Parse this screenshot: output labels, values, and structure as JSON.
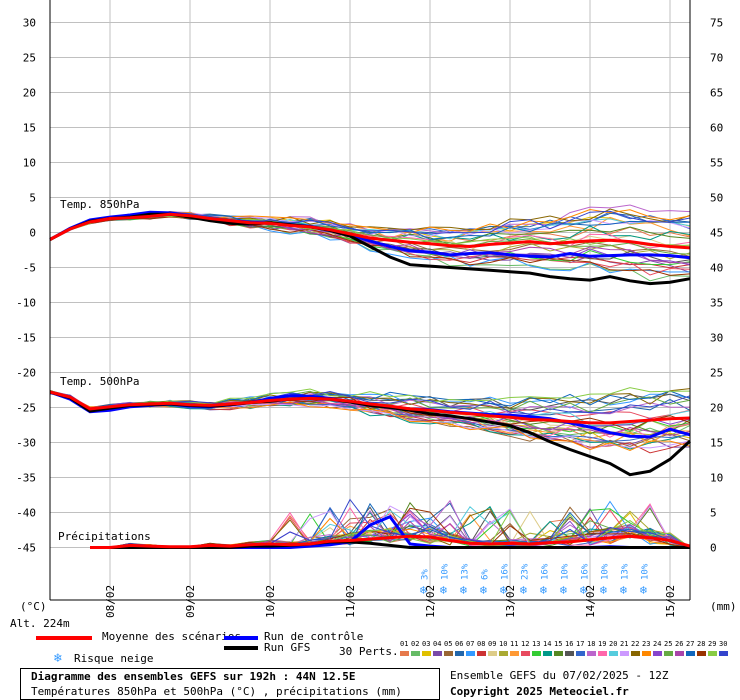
{
  "chart_data": {
    "type": "line",
    "left_axis": {
      "unit": "(°C)",
      "ticks": [
        30,
        25,
        20,
        15,
        10,
        5,
        0,
        -5,
        -10,
        -15,
        -20,
        -25,
        -30,
        -35,
        -40,
        -45
      ],
      "range": [
        -50,
        33
      ]
    },
    "right_axis": {
      "unit": "(mm)",
      "ticks": [
        75,
        70,
        65,
        60,
        55,
        50,
        45,
        40,
        35,
        30,
        25,
        20,
        15,
        10,
        5,
        0
      ],
      "range": [
        0,
        75
      ]
    },
    "altitude_label": "Alt. 224m",
    "x_labels": [
      "08/02",
      "09/02",
      "10/02",
      "11/02",
      "12/02",
      "13/02",
      "14/02",
      "15/02"
    ],
    "x_range_hours": [
      0,
      192
    ],
    "panels": {
      "t850": {
        "label": "Temp. 850hPa"
      },
      "t500": {
        "label": "Temp. 500hPa"
      },
      "precip": {
        "label": "Précipitations"
      }
    },
    "hours": [
      0,
      6,
      12,
      18,
      24,
      30,
      36,
      42,
      48,
      54,
      60,
      66,
      72,
      78,
      84,
      90,
      96,
      102,
      108,
      114,
      120,
      126,
      132,
      138,
      144,
      150,
      156,
      162,
      168,
      174,
      180,
      186,
      192
    ],
    "series": [
      {
        "name": "Moyenne des scénarios",
        "color": "#ff0000",
        "t850": [
          -1.0,
          0.5,
          1.5,
          2.0,
          2.1,
          2.3,
          2.6,
          2.4,
          2.0,
          1.7,
          1.4,
          1.3,
          1.0,
          0.8,
          0.4,
          -0.2,
          -0.8,
          -1.1,
          -1.4,
          -1.6,
          -1.9,
          -2.0,
          -1.7,
          -1.5,
          -1.3,
          -1.6,
          -1.4,
          -1.2,
          -1.1,
          -1.3,
          -1.7,
          -2.0,
          -2.2
        ],
        "t500": [
          -22.8,
          -23.5,
          -25.2,
          -24.9,
          -24.6,
          -24.5,
          -24.4,
          -24.6,
          -24.7,
          -24.5,
          -24.3,
          -24.0,
          -23.8,
          -23.7,
          -23.8,
          -24.1,
          -24.5,
          -24.8,
          -25.2,
          -25.4,
          -25.7,
          -25.9,
          -26.2,
          -26.4,
          -26.7,
          -26.8,
          -27.0,
          -27.2,
          -27.2,
          -27.0,
          -26.8,
          -26.6,
          -26.5
        ],
        "precip": [
          0,
          0,
          0,
          0,
          0.3,
          0.2,
          0.1,
          0.1,
          0.3,
          0.2,
          0.4,
          0.5,
          0.4,
          0.5,
          0.9,
          1.0,
          1.2,
          1.4,
          1.6,
          1.5,
          1.0,
          0.6,
          0.5,
          0.6,
          0.5,
          0.7,
          0.8,
          1.1,
          1.4,
          1.6,
          1.4,
          1.0,
          0.2
        ]
      },
      {
        "name": "Run de contrôle",
        "color": "#0000ff",
        "t850": [
          -1.0,
          0.6,
          1.8,
          2.2,
          2.5,
          2.9,
          2.8,
          2.4,
          1.9,
          1.7,
          1.5,
          1.3,
          1.1,
          0.9,
          0.3,
          -0.3,
          -1.2,
          -2.0,
          -2.6,
          -2.8,
          -3.2,
          -3.0,
          -2.9,
          -3.2,
          -3.4,
          -3.5,
          -3.0,
          -3.4,
          -3.3,
          -3.2,
          -3.2,
          -3.3,
          -3.6
        ],
        "t500": [
          -22.8,
          -23.8,
          -25.6,
          -25.4,
          -24.9,
          -24.7,
          -24.5,
          -24.8,
          -24.9,
          -24.6,
          -24.3,
          -23.7,
          -23.3,
          -23.4,
          -23.7,
          -24.2,
          -24.7,
          -24.9,
          -25.2,
          -25.3,
          -25.6,
          -25.8,
          -26.0,
          -26.1,
          -26.3,
          -26.6,
          -27.2,
          -27.8,
          -28.6,
          -29.1,
          -29.2,
          -28.1,
          -28.9
        ],
        "precip": [
          0,
          0,
          0,
          0,
          0,
          0,
          0,
          0,
          0,
          0,
          0,
          0,
          0,
          0.2,
          0.4,
          0.8,
          3.2,
          4.4,
          0.5,
          0.2,
          0,
          0,
          0,
          0,
          0,
          0,
          0,
          0,
          0.1,
          0,
          0,
          0,
          0
        ]
      },
      {
        "name": "Run GFS",
        "color": "#000000",
        "t850": [
          -1.0,
          0.5,
          1.6,
          2.0,
          2.2,
          2.6,
          2.6,
          2.2,
          1.7,
          1.3,
          1.2,
          1.4,
          1.1,
          0.8,
          0.3,
          -0.5,
          -2.0,
          -3.5,
          -4.6,
          -4.8,
          -5.0,
          -5.2,
          -5.4,
          -5.6,
          -5.8,
          -6.3,
          -6.6,
          -6.8,
          -6.3,
          -6.9,
          -7.3,
          -7.1,
          -6.6
        ],
        "t500": [
          -22.8,
          -23.6,
          -25.5,
          -25.1,
          -24.7,
          -24.6,
          -24.5,
          -24.7,
          -24.8,
          -24.6,
          -24.3,
          -24.1,
          -23.8,
          -23.7,
          -23.8,
          -24.2,
          -24.7,
          -25.0,
          -25.4,
          -25.9,
          -26.2,
          -26.6,
          -27.1,
          -27.6,
          -28.6,
          -29.9,
          -31.0,
          -32.0,
          -33.0,
          -34.6,
          -34.1,
          -32.4,
          -29.8
        ],
        "precip": [
          0,
          0,
          0,
          0,
          0,
          0,
          0,
          0,
          0,
          0,
          0.2,
          0.2,
          0.3,
          0.5,
          0.8,
          0.8,
          0.6,
          0.3,
          0,
          0,
          0,
          0,
          0,
          0,
          0,
          0,
          0,
          0,
          0,
          0,
          0,
          0,
          0
        ]
      }
    ],
    "snow_risk": {
      "hours": [
        112,
        118,
        124,
        130,
        136,
        142,
        148,
        154,
        160,
        166,
        172,
        178
      ],
      "labels": [
        "3%",
        "10%",
        "13%",
        "6%",
        "16%",
        "23%",
        "16%",
        "10%",
        "16%",
        "10%",
        "13%",
        "10%"
      ]
    },
    "member_colors": [
      "#e6794b",
      "#66bb66",
      "#e0c000",
      "#7a4aa8",
      "#996633",
      "#2266aa",
      "#3399ff",
      "#cc3333",
      "#ddcc88",
      "#aaaa33",
      "#ff9933",
      "#e84a5f",
      "#33cc33",
      "#009988",
      "#558822",
      "#555555",
      "#3366cc",
      "#bb66cc",
      "#ff66aa",
      "#55ccdd",
      "#cc99ff",
      "#886600",
      "#ff8800",
      "#8844cc",
      "#66aa44",
      "#aa44aa",
      "#1166bb",
      "#993300",
      "#88cc44",
      "#3344cc"
    ]
  },
  "legend": {
    "mean_label": "Moyenne des scénarios",
    "control_label": "Run de contrôle",
    "gfs_label": "Run GFS",
    "snow_label": "Risque neige",
    "perts_label": "30 Perts.",
    "member_numbers": [
      "01",
      "02",
      "03",
      "04",
      "05",
      "06",
      "07",
      "08",
      "09",
      "10",
      "11",
      "12",
      "13",
      "14",
      "15",
      "16",
      "17",
      "18",
      "19",
      "20",
      "21",
      "22",
      "23",
      "24",
      "25",
      "26",
      "27",
      "28",
      "29",
      "30"
    ]
  },
  "footer": {
    "title": "Diagramme des ensembles GEFS sur 192h : 44N 12.5E",
    "subtitle": "Températures 850hPa et 500hPa (°C) , précipitations (mm)",
    "run": "Ensemble GEFS du 07/02/2025 - 12Z",
    "copyright": "Copyright 2025 Meteociel.fr"
  }
}
